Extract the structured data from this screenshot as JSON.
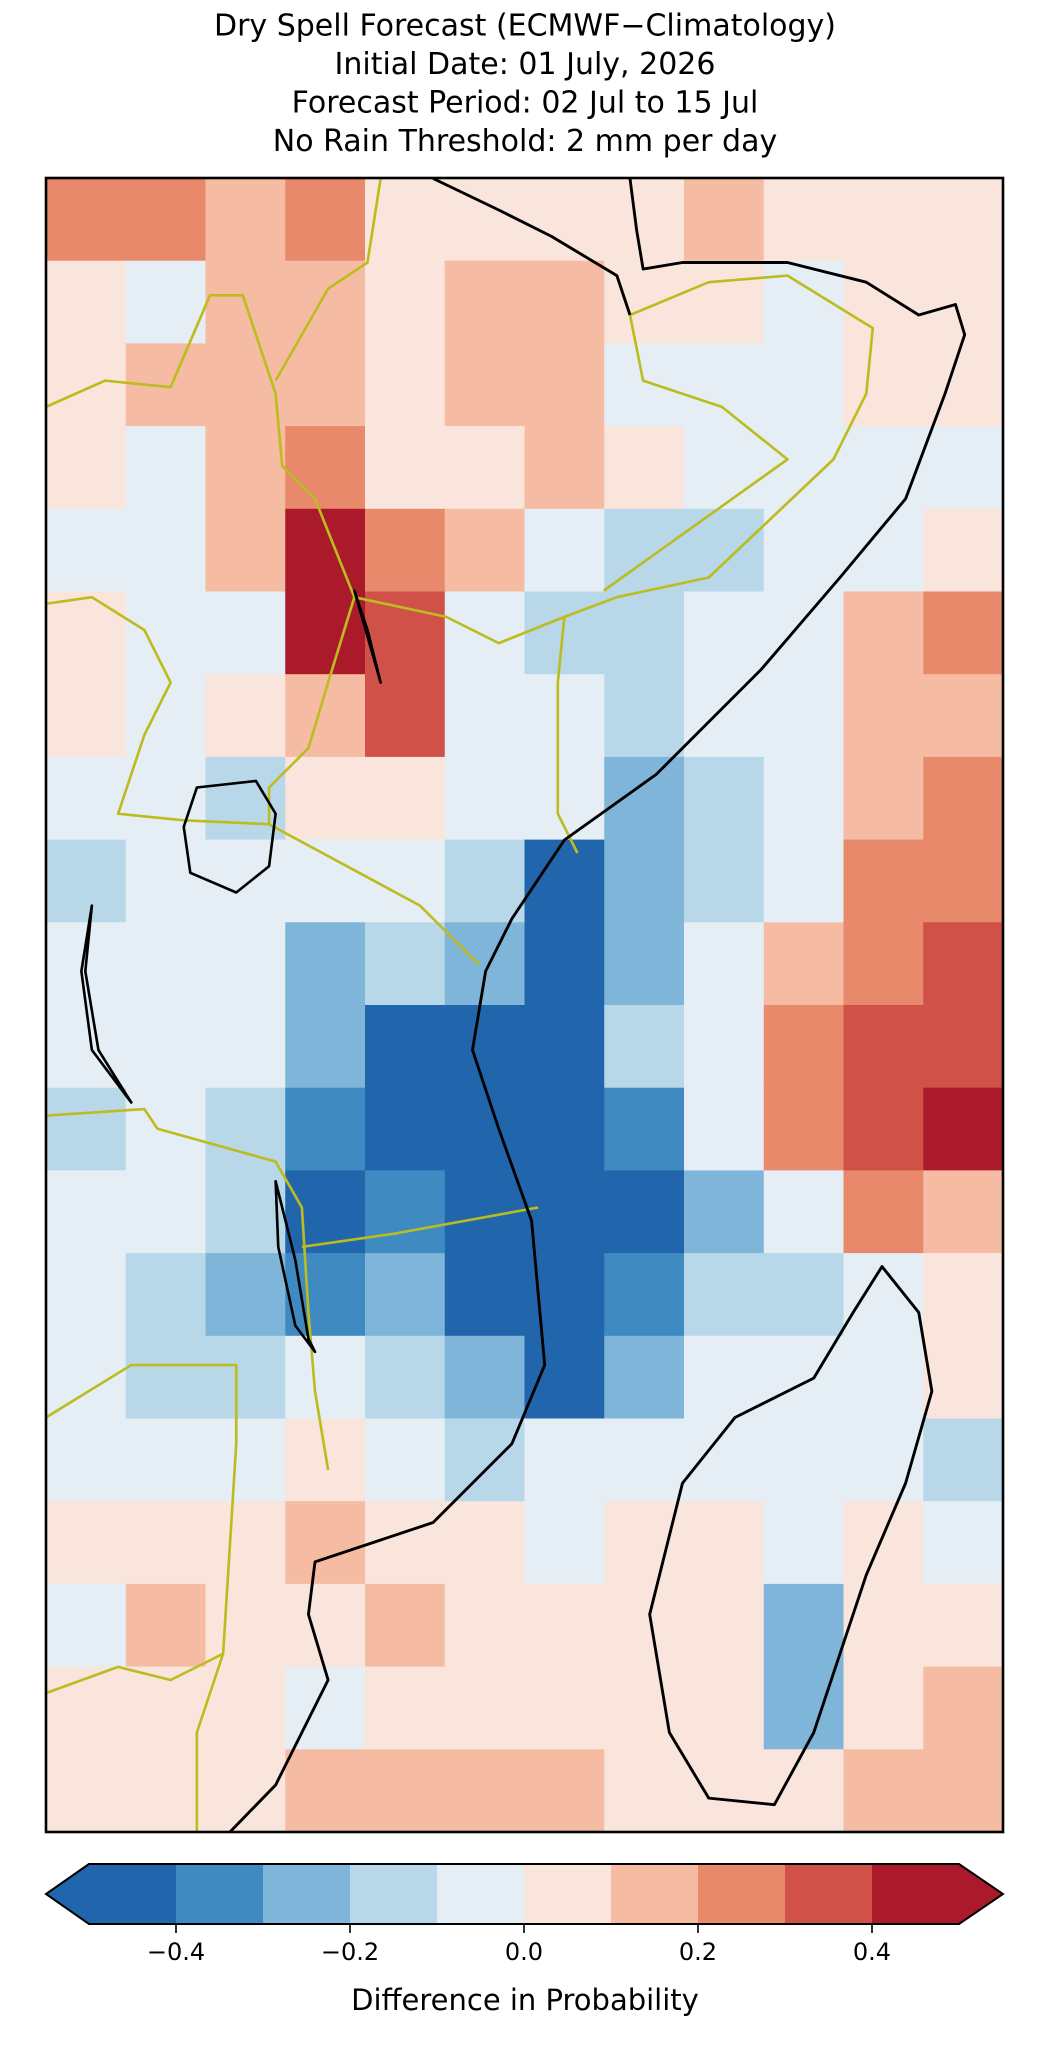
{
  "chart_data": {
    "type": "heatmap",
    "title": [
      "Dry Spell Forecast (ECMWF−Climatology)",
      "Initial Date: 01 July, 2026",
      "Forecast Period: 02 Jul to 15 Jul",
      "No Rain Threshold: 2 mm per day"
    ],
    "values": [
      [
        0.25,
        0.25,
        0.15,
        0.25,
        0.05,
        0.05,
        0.05,
        0.05,
        0.15,
        0.05,
        0.05,
        0.05
      ],
      [
        0.05,
        -0.05,
        0.15,
        0.15,
        0.05,
        0.15,
        0.15,
        0.05,
        0.05,
        -0.05,
        0.05,
        0.05
      ],
      [
        0.05,
        0.15,
        0.15,
        0.15,
        0.05,
        0.15,
        0.15,
        -0.05,
        -0.05,
        -0.05,
        0.05,
        0.05
      ],
      [
        0.05,
        -0.05,
        0.15,
        0.25,
        0.05,
        0.05,
        0.15,
        0.05,
        -0.05,
        -0.05,
        -0.05,
        -0.05
      ],
      [
        -0.05,
        -0.05,
        0.15,
        0.45,
        0.25,
        0.15,
        -0.05,
        -0.15,
        -0.15,
        -0.05,
        -0.05,
        0.05
      ],
      [
        0.05,
        -0.05,
        -0.05,
        0.45,
        0.35,
        -0.05,
        -0.15,
        -0.15,
        -0.05,
        -0.05,
        0.15,
        0.25
      ],
      [
        0.05,
        -0.05,
        0.05,
        0.15,
        0.35,
        -0.05,
        -0.05,
        -0.15,
        -0.05,
        -0.05,
        0.15,
        0.15
      ],
      [
        -0.05,
        -0.05,
        -0.15,
        0.05,
        0.05,
        -0.05,
        -0.05,
        -0.25,
        -0.15,
        -0.05,
        0.15,
        0.25
      ],
      [
        -0.15,
        -0.05,
        -0.05,
        -0.05,
        -0.05,
        -0.15,
        -0.45,
        -0.25,
        -0.15,
        -0.05,
        0.25,
        0.25
      ],
      [
        -0.05,
        -0.05,
        -0.05,
        -0.25,
        -0.15,
        -0.25,
        -0.45,
        -0.25,
        -0.05,
        0.15,
        0.25,
        0.35
      ],
      [
        -0.05,
        -0.05,
        -0.05,
        -0.25,
        -0.45,
        -0.45,
        -0.45,
        -0.15,
        -0.05,
        0.25,
        0.35,
        0.35
      ],
      [
        -0.15,
        -0.05,
        -0.15,
        -0.35,
        -0.45,
        -0.45,
        -0.45,
        -0.35,
        -0.05,
        0.25,
        0.35,
        0.45
      ],
      [
        -0.05,
        -0.05,
        -0.15,
        -0.45,
        -0.35,
        -0.45,
        -0.45,
        -0.45,
        -0.25,
        -0.05,
        0.25,
        0.15
      ],
      [
        -0.05,
        -0.15,
        -0.25,
        -0.35,
        -0.25,
        -0.45,
        -0.45,
        -0.35,
        -0.15,
        -0.15,
        -0.05,
        0.05
      ],
      [
        -0.05,
        -0.15,
        -0.15,
        -0.05,
        -0.15,
        -0.25,
        -0.45,
        -0.25,
        -0.05,
        -0.05,
        -0.05,
        0.05
      ],
      [
        -0.05,
        -0.05,
        -0.05,
        0.05,
        -0.05,
        -0.15,
        -0.05,
        -0.05,
        -0.05,
        -0.05,
        -0.05,
        -0.15
      ],
      [
        0.05,
        0.05,
        0.05,
        0.15,
        0.05,
        0.05,
        -0.05,
        0.05,
        0.05,
        -0.05,
        0.05,
        -0.05
      ],
      [
        -0.05,
        0.15,
        0.05,
        0.05,
        0.15,
        0.05,
        0.05,
        0.05,
        0.05,
        -0.25,
        0.05,
        0.05
      ],
      [
        0.05,
        0.05,
        0.05,
        -0.05,
        0.05,
        0.05,
        0.05,
        0.05,
        0.05,
        -0.25,
        0.05,
        0.15
      ],
      [
        0.05,
        0.05,
        0.05,
        0.15,
        0.15,
        0.15,
        0.15,
        0.05,
        0.05,
        0.05,
        0.15,
        0.15
      ]
    ],
    "colorbar": {
      "label": "Difference in Probability",
      "boundaries": [
        -0.5,
        -0.4,
        -0.3,
        -0.2,
        -0.1,
        0,
        0.1,
        0.2,
        0.3,
        0.4,
        0.5
      ],
      "colors": [
        "#2166ac",
        "#3f8bc1",
        "#7fb5d8",
        "#b8d8ea",
        "#e5eef4",
        "#f9e5dc",
        "#f6bca3",
        "#e8896b",
        "#cf5148",
        "#ab1a2a"
      ],
      "ticks": [
        {
          "value": -0.4,
          "label": "−0.4"
        },
        {
          "value": -0.2,
          "label": "−0.2"
        },
        {
          "value": 0,
          "label": "0.0"
        },
        0.2,
        0.4
      ],
      "extend": "both"
    }
  }
}
